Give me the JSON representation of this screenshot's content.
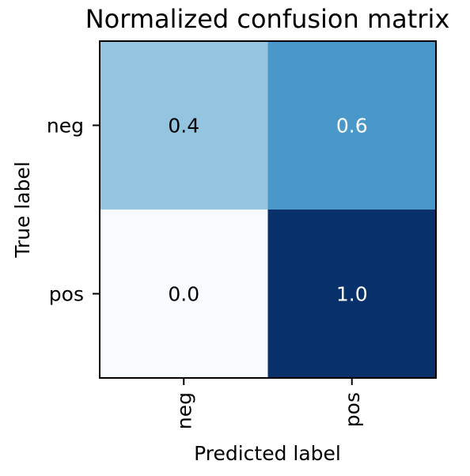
{
  "chart_data": {
    "type": "heatmap",
    "title": "Normalized confusion matrix",
    "xlabel": "Predicted label",
    "ylabel": "True label",
    "x_categories": [
      "neg",
      "pos"
    ],
    "y_categories": [
      "neg",
      "pos"
    ],
    "values": [
      [
        0.4,
        0.6
      ],
      [
        0.0,
        1.0
      ]
    ],
    "value_labels": [
      [
        "0.4",
        "0.6"
      ],
      [
        "0.0",
        "1.0"
      ]
    ],
    "colormap": "Blues",
    "value_range": [
      0.0,
      1.0
    ],
    "grid": false,
    "legend": "none"
  }
}
